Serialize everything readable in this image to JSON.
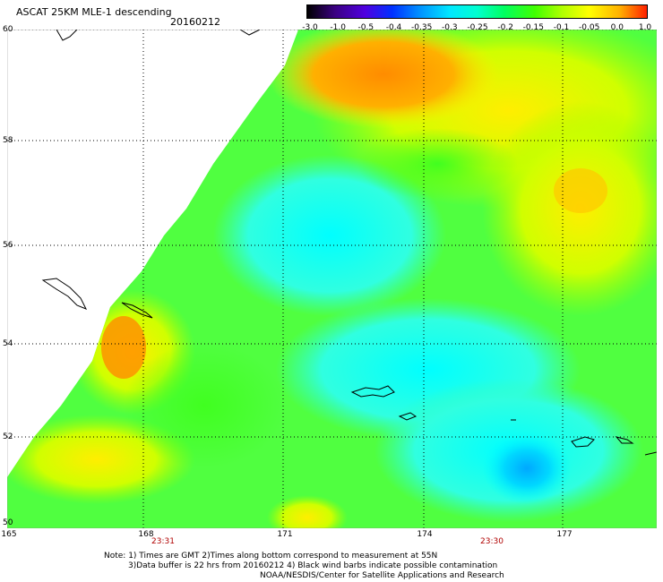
{
  "header": {
    "title": "ASCAT 25KM MLE-1 descending",
    "date": "20160212"
  },
  "colorbar": {
    "labels": [
      "-3.0",
      "-1.0",
      "-0.5",
      "-0.4",
      "-0.35",
      "-0.3",
      "-0.25",
      "-0.2",
      "-0.15",
      "-0.1",
      "-0.05",
      "0.0",
      "1.0"
    ],
    "colors": [
      "#000000",
      "#3a0080",
      "#5000e0",
      "#0030ff",
      "#0090ff",
      "#00d8ff",
      "#00ffd0",
      "#00ff60",
      "#40ff00",
      "#c0ff00",
      "#ffff00",
      "#ffb000",
      "#ff4000"
    ]
  },
  "axes": {
    "lat_labels": [
      "60",
      "58",
      "56",
      "54",
      "52",
      "50"
    ],
    "lon_labels": [
      "165",
      "168",
      "171",
      "174",
      "177"
    ],
    "time_labels": [
      "23:31",
      "23:30"
    ]
  },
  "notes": {
    "line1": "Note: 1) Times are GMT 2)Times along bottom correspond to measurement at 55N",
    "line2": "3)Data buffer is 22 hrs from 20160212 4) Black wind barbs indicate possible contamination",
    "line3": "NOAA/NESDIS/Center for Satellite Applications and Research"
  }
}
